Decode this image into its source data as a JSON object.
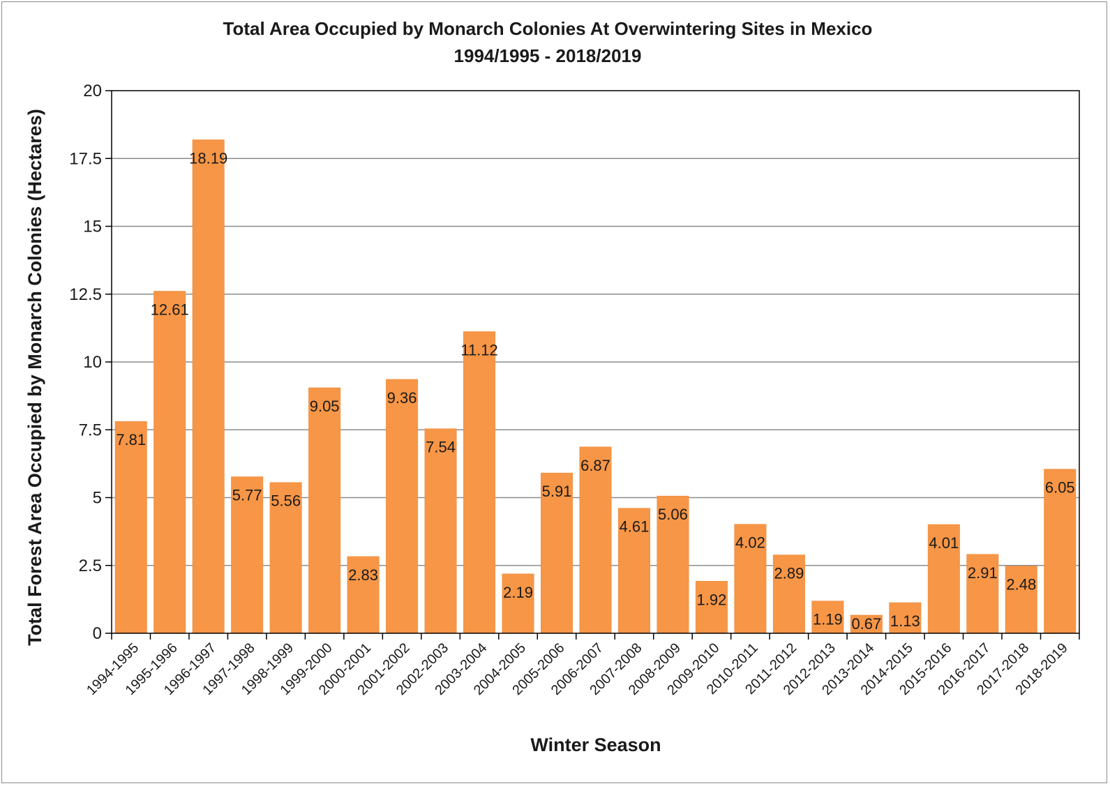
{
  "chart_data": {
    "type": "bar",
    "title": "Total Area Occupied by Monarch Colonies At Overwintering Sites in Mexico",
    "subtitle": "1994/1995 - 2018/2019",
    "xlabel": "Winter Season",
    "ylabel": "Total Forest Area Occupied by Monarch Colonies (Hectares)",
    "ylim": [
      0,
      20
    ],
    "yticks": [
      "0",
      "2.5",
      "5",
      "7.5",
      "10",
      "12.5",
      "15",
      "17.5",
      "20"
    ],
    "grid": true,
    "legend": "none",
    "bar_color": "#F79646",
    "categories": [
      "1994-1995",
      "1995-1996",
      "1996-1997",
      "1997-1998",
      "1998-1999",
      "1999-2000",
      "2000-2001",
      "2001-2002",
      "2002-2003",
      "2003-2004",
      "2004-2005",
      "2005-2006",
      "2006-2007",
      "2007-2008",
      "2008-2009",
      "2009-2010",
      "2010-2011",
      "2011-2012",
      "2012-2013",
      "2013-2014",
      "2014-2015",
      "2015-2016",
      "2016-2017",
      "2017-2018",
      "2018-2019"
    ],
    "values": [
      7.81,
      12.61,
      18.19,
      5.77,
      5.56,
      9.05,
      2.83,
      9.36,
      7.54,
      11.12,
      2.19,
      5.91,
      6.87,
      4.61,
      5.06,
      1.92,
      4.02,
      2.89,
      1.19,
      0.67,
      1.13,
      4.01,
      2.91,
      2.48,
      6.05
    ],
    "data_labels": [
      "7.81",
      "12.61",
      "18.19",
      "5.77",
      "5.56",
      "9.05",
      "2.83",
      "9.36",
      "7.54",
      "11.12",
      "2.19",
      "5.91",
      "6.87",
      "4.61",
      "5.06",
      "1.92",
      "4.02",
      "2.89",
      "1.19",
      "0.67",
      "1.13",
      "4.01",
      "2.91",
      "2.48",
      "6.05"
    ]
  }
}
